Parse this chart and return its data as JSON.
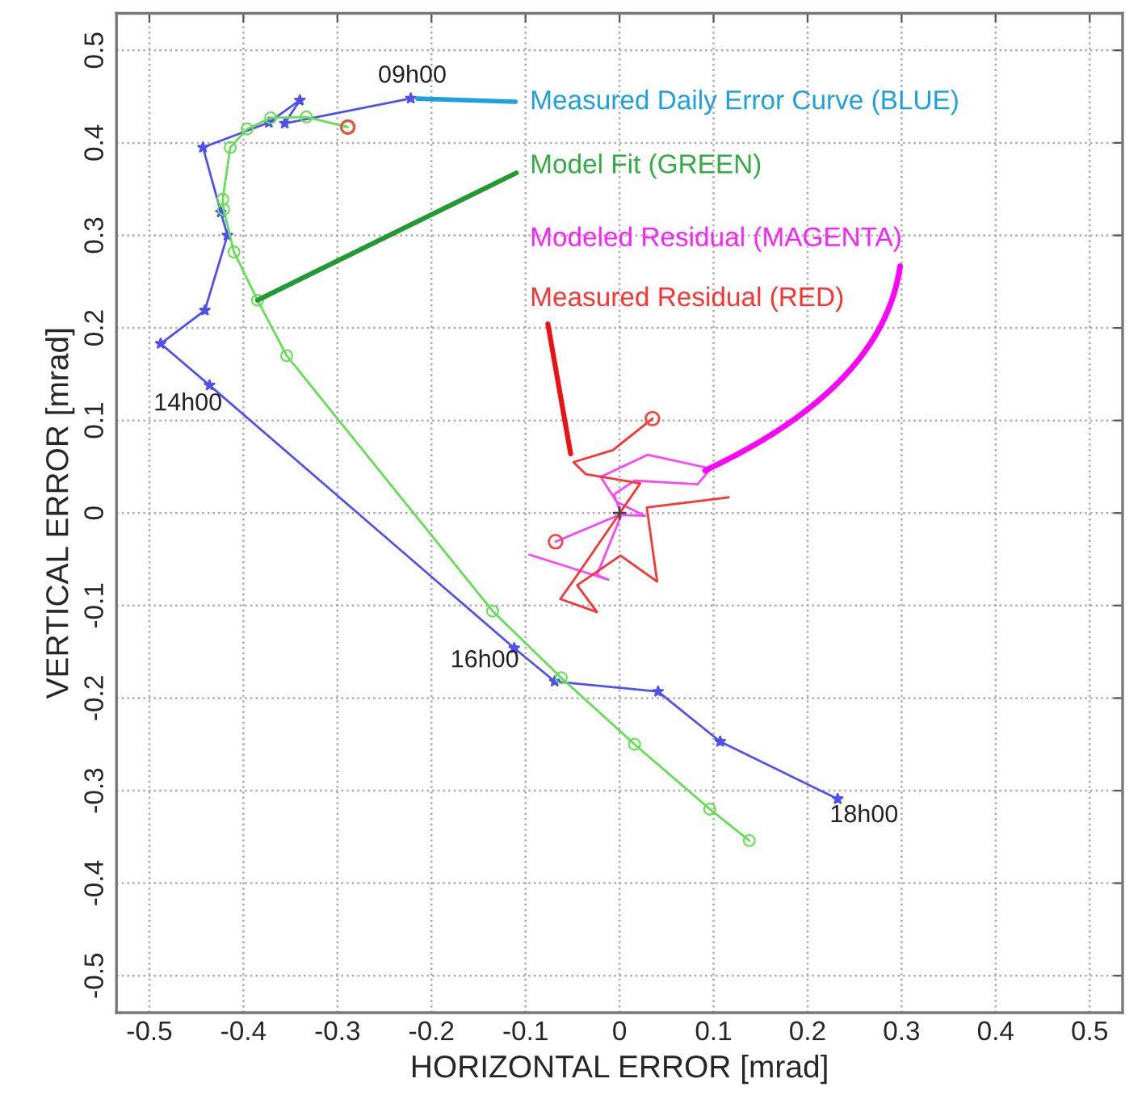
{
  "chart_data": {
    "type": "line",
    "xlabel": "HORIZONTAL ERROR [mrad]",
    "ylabel": "VERTICAL ERROR [mrad]",
    "xlim": [
      -0.535,
      0.535
    ],
    "ylim": [
      -0.54,
      0.54
    ],
    "xticks": [
      -0.5,
      -0.4,
      -0.3,
      -0.2,
      -0.1,
      0,
      0.1,
      0.2,
      0.3,
      0.4,
      0.5
    ],
    "yticks": [
      -0.5,
      -0.4,
      -0.3,
      -0.2,
      -0.1,
      0,
      0.1,
      0.2,
      0.3,
      0.4,
      0.5
    ],
    "grid": true,
    "series": [
      {
        "color": "#5050f0",
        "marker": "star",
        "x": [
          -0.222,
          -0.356,
          -0.34,
          -0.373,
          -0.443,
          -0.424,
          -0.417,
          -0.441,
          -0.488,
          -0.436,
          -0.112,
          -0.069,
          0.041,
          0.107,
          0.232
        ],
        "values": [
          0.448,
          0.421,
          0.446,
          0.422,
          0.395,
          0.325,
          0.3,
          0.219,
          0.183,
          0.138,
          -0.146,
          -0.182,
          -0.193,
          -0.247,
          -0.309
        ]
      },
      {
        "color": "#66dd55",
        "marker": "circle",
        "x": [
          -0.289,
          -0.333,
          -0.371,
          -0.396,
          -0.414,
          -0.422,
          -0.421,
          -0.41,
          -0.385,
          -0.354,
          -0.135,
          -0.062,
          0.016,
          0.096,
          0.138
        ],
        "values": [
          0.417,
          0.428,
          0.427,
          0.415,
          0.395,
          0.339,
          0.328,
          0.282,
          0.23,
          0.17,
          -0.106,
          -0.178,
          -0.25,
          -0.32,
          -0.354
        ]
      },
      {
        "color": "#ff44ff",
        "marker": "none",
        "x": [
          -0.068,
          0.0,
          0.027,
          -0.003,
          -0.02,
          0.03,
          0.097,
          0.083,
          0.016,
          -0.006,
          0.002,
          -0.024,
          -0.012,
          -0.096
        ],
        "values": [
          -0.031,
          -0.002,
          -0.003,
          0.012,
          0.039,
          0.063,
          0.048,
          0.031,
          0.035,
          0.02,
          -0.002,
          -0.067,
          -0.072,
          -0.045
        ]
      },
      {
        "color": "#ff3333",
        "marker": "none",
        "x": [
          0.035,
          -0.007,
          -0.049,
          -0.036,
          0.022,
          -0.047,
          -0.063,
          -0.024,
          -0.045,
          0.001,
          0.04,
          0.029,
          0.116
        ],
        "values": [
          0.102,
          0.068,
          0.055,
          0.042,
          0.032,
          -0.07,
          -0.093,
          -0.107,
          -0.078,
          -0.046,
          -0.074,
          0.006,
          0.017
        ]
      },
      {
        "type": "scatter",
        "color": "#ff4444",
        "marker": "circle",
        "x": [
          -0.289,
          0.035,
          -0.068
        ],
        "values": [
          0.417,
          0.102,
          -0.031
        ]
      },
      {
        "type": "scatter",
        "color": "#404040",
        "marker": "cross",
        "x": [
          0.0
        ],
        "values": [
          0.0
        ]
      }
    ],
    "annotations": [
      {
        "text": "Measured Daily Error Curve (BLUE)",
        "x": -0.222,
        "y": 0.448
      },
      {
        "text": "Model Fit (GREEN)",
        "x": -0.385,
        "y": 0.23
      },
      {
        "text": "Modeled Residual (MAGENTA)",
        "x": 0.091,
        "y": 0.046
      },
      {
        "text": "Measured Residual (RED)",
        "x": -0.052,
        "y": 0.064
      },
      {
        "text": "09h00",
        "x": -0.222,
        "y": 0.448
      },
      {
        "text": "14h00",
        "x": -0.436,
        "y": 0.138
      },
      {
        "text": "16h00",
        "x": -0.112,
        "y": -0.146
      },
      {
        "text": "18h00",
        "x": 0.232,
        "y": -0.309
      }
    ]
  }
}
